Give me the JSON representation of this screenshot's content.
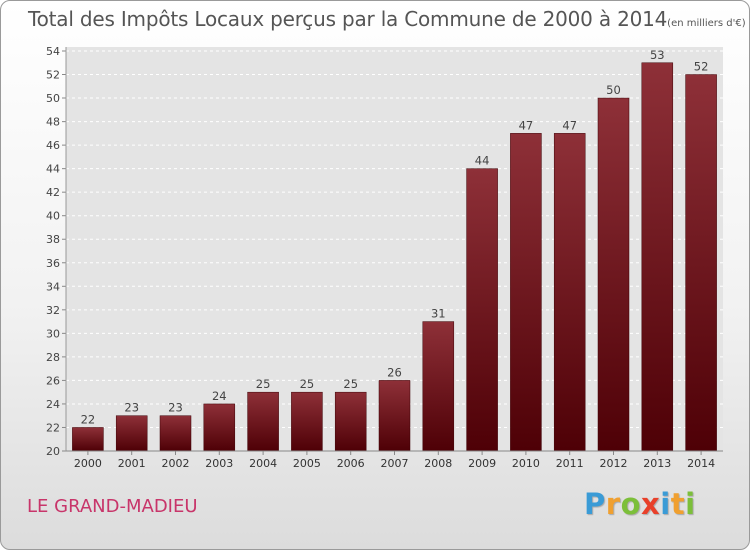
{
  "chart_data": {
    "type": "bar",
    "title": "Total des Impôts Locaux perçus par la Commune de 2000 à 2014",
    "subtitle": "(en milliers d'€)",
    "categories": [
      "2000",
      "2001",
      "2002",
      "2003",
      "2004",
      "2005",
      "2006",
      "2007",
      "2008",
      "2009",
      "2010",
      "2011",
      "2012",
      "2013",
      "2014"
    ],
    "values": [
      22,
      23,
      23,
      24,
      25,
      25,
      25,
      26,
      31,
      44,
      47,
      47,
      50,
      53,
      52
    ],
    "ylim": [
      20,
      54
    ],
    "yticks": [
      20,
      22,
      24,
      26,
      28,
      30,
      32,
      34,
      36,
      38,
      40,
      42,
      44,
      46,
      48,
      50,
      52,
      54
    ],
    "xlabel": "",
    "ylabel": "",
    "grid": "horizontal dashed",
    "bar_color": "#7a1c22"
  },
  "commune": "LE GRAND-MADIEU",
  "brand": {
    "letters": [
      "P",
      "r",
      "o",
      "x",
      "i",
      "t",
      "i"
    ],
    "colors": [
      "#3a9bd6",
      "#f0a030",
      "#7cbf3a",
      "#e8402a",
      "#3a9bd6",
      "#f0a030",
      "#7cbf3a"
    ]
  }
}
